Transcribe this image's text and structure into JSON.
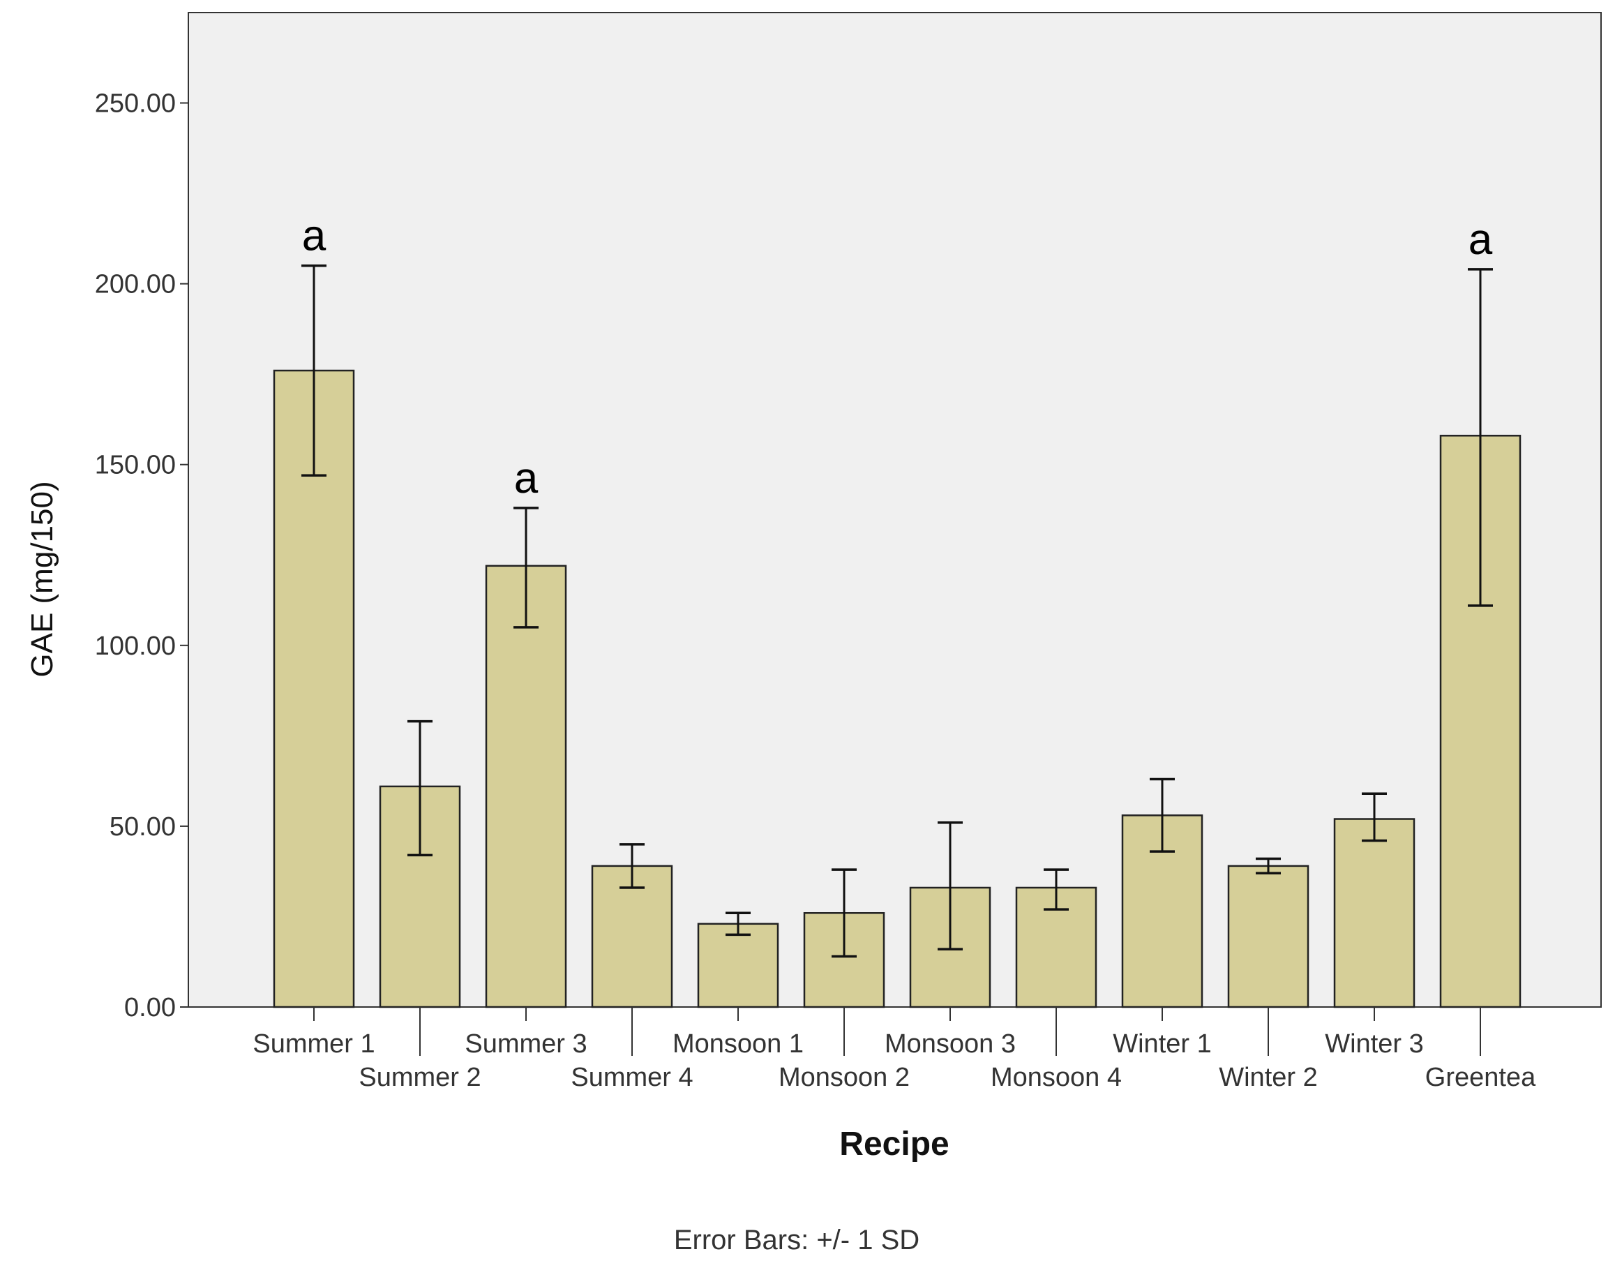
{
  "chart_data": {
    "type": "bar",
    "xlabel": "Recipe",
    "ylabel": "GAE (mg/150)",
    "ylim": [
      0,
      275
    ],
    "yticks": [
      0,
      50,
      100,
      150,
      200,
      250
    ],
    "ytick_labels": [
      "0.00",
      "50.00",
      "100.00",
      "150.00",
      "200.00",
      "250.00"
    ],
    "categories": [
      "Summer 1",
      "Summer 2",
      "Summer 3",
      "Summer 4",
      "Monsoon 1",
      "Monsoon 2",
      "Monsoon 3",
      "Monsoon 4",
      "Winter 1",
      "Winter 2",
      "Winter 3",
      "Greentea"
    ],
    "values": [
      176,
      61,
      122,
      39,
      23,
      26,
      33,
      33,
      53,
      39,
      52,
      158
    ],
    "error_low": [
      147,
      42,
      105,
      33,
      20,
      14,
      16,
      27,
      43,
      37,
      46,
      111
    ],
    "error_high": [
      205,
      79,
      138,
      45,
      26,
      38,
      51,
      38,
      63,
      41,
      59,
      204
    ],
    "annotations": [
      "a",
      "",
      "a",
      "",
      "",
      "",
      "",
      "",
      "",
      "",
      "",
      "a"
    ],
    "footnote": "Error Bars: +/- 1 SD",
    "grid": false,
    "colors": {
      "bar_fill": "#d6cf98",
      "bar_stroke": "#222222",
      "plot_bg": "#f0f0f0"
    }
  }
}
